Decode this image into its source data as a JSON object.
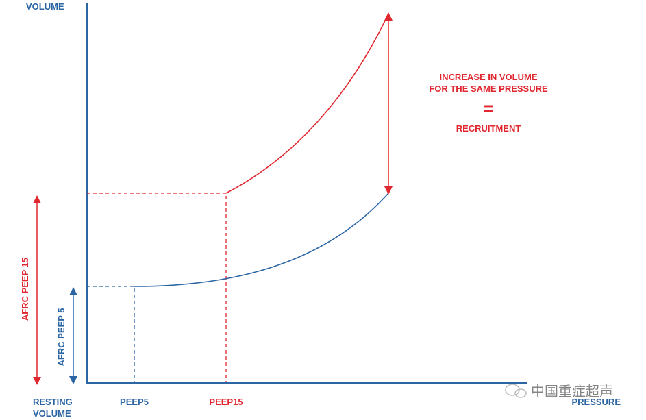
{
  "axes": {
    "y_label": "VOLUME",
    "x_label": "PRESSURE",
    "origin_label": [
      "RESTING",
      "VOLUME"
    ]
  },
  "markers": {
    "peep5": "PEEP5",
    "peep15": "PEEP15"
  },
  "side_labels": {
    "afrc_peep15": "AFRC PEEP 15",
    "afrc_peep5": "AFRC PEEP 5"
  },
  "note": {
    "lines": [
      "INCREASE IN VOLUME",
      "FOR THE SAME PRESSURE"
    ],
    "equals": "=",
    "result": "RECRUITMENT"
  },
  "watermark": "中国重症超声"
}
